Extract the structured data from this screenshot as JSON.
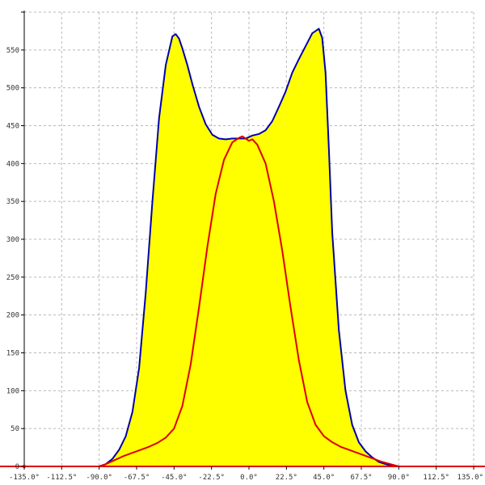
{
  "chart_data": {
    "type": "area",
    "title": "",
    "xlabel": "",
    "ylabel": "",
    "xlim": [
      -135,
      135
    ],
    "ylim": [
      0,
      600
    ],
    "x_ticks": [
      -135,
      -112.5,
      -90,
      -67.5,
      -45,
      -22.5,
      0,
      22.5,
      45,
      67.5,
      90,
      112.5,
      135
    ],
    "x_tick_labels": [
      "-135.0°",
      "-112.5°",
      "-90.0°",
      "-67.5°",
      "-45.0°",
      "-22.5°",
      "0.0°",
      "22.5°",
      "45.0°",
      "67.5°",
      "90.0°",
      "112.5°",
      "135.0°"
    ],
    "y_ticks": [
      0,
      50,
      100,
      150,
      200,
      250,
      300,
      350,
      400,
      450,
      500,
      550
    ],
    "y_tick_labels": [
      "0",
      "50",
      "100",
      "150",
      "200",
      "250",
      "300",
      "350",
      "400",
      "450",
      "500",
      "550"
    ],
    "grid": true,
    "series": [
      {
        "color": "#0000aa",
        "fill": "#ffff00",
        "x": [
          -135,
          -90,
          -86,
          -82,
          -78,
          -74,
          -70,
          -66,
          -62,
          -58,
          -54,
          -50,
          -46,
          -44,
          -42,
          -40,
          -37,
          -34,
          -30,
          -26,
          -22,
          -18,
          -14,
          -10,
          -6,
          -2,
          0,
          2,
          6,
          10,
          14,
          18,
          22,
          26,
          30,
          34,
          38,
          42,
          44,
          46,
          48,
          50,
          54,
          58,
          62,
          66,
          70,
          74,
          78,
          82,
          86,
          90,
          135
        ],
        "values": [
          0,
          0,
          3,
          10,
          22,
          40,
          72,
          130,
          230,
          350,
          460,
          530,
          568,
          571,
          565,
          552,
          530,
          505,
          475,
          452,
          438,
          433,
          432,
          433,
          433,
          433,
          435,
          437,
          439,
          444,
          456,
          475,
          495,
          520,
          538,
          555,
          572,
          578,
          566,
          520,
          420,
          310,
          180,
          100,
          55,
          32,
          20,
          12,
          6,
          3,
          1,
          0,
          0
        ]
      },
      {
        "color": "#dd0000",
        "x": [
          -135,
          -90,
          -86,
          -80,
          -75,
          -70,
          -65,
          -60,
          -55,
          -50,
          -45,
          -40,
          -35,
          -30,
          -25,
          -20,
          -15,
          -10,
          -6,
          -4,
          -2,
          0,
          2,
          5,
          10,
          15,
          20,
          25,
          30,
          35,
          40,
          45,
          50,
          55,
          60,
          65,
          70,
          75,
          80,
          85,
          90,
          135
        ],
        "values": [
          0,
          0,
          3,
          9,
          14,
          18,
          22,
          26,
          31,
          38,
          50,
          80,
          135,
          210,
          290,
          360,
          405,
          428,
          434,
          436,
          433,
          430,
          432,
          425,
          400,
          350,
          285,
          210,
          140,
          85,
          55,
          40,
          32,
          26,
          22,
          18,
          14,
          10,
          6,
          3,
          0,
          0
        ]
      }
    ]
  }
}
